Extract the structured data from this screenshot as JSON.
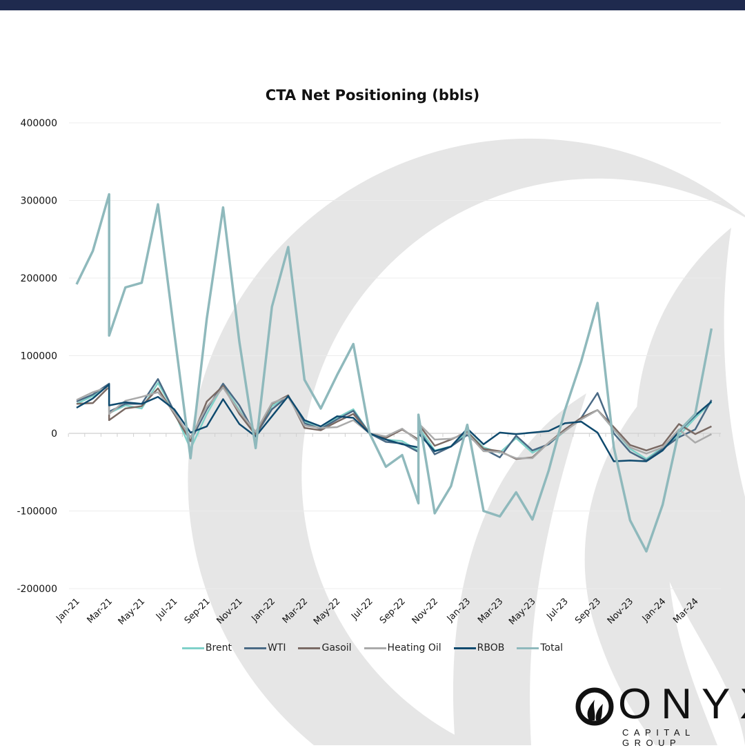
{
  "header_bar_color": "#1f2a4e",
  "chart_data": {
    "type": "line",
    "title": "CTA Net Positioning (bbls)",
    "xlabel": "",
    "ylabel": "",
    "ylim": [
      -200000,
      400000
    ],
    "yticks": [
      "400000",
      "300000",
      "200000",
      "100000",
      "0",
      "-100000",
      "-200000"
    ],
    "ytick_values": [
      400000,
      300000,
      200000,
      100000,
      0,
      -100000,
      -200000
    ],
    "xticks": [
      "Jan-21",
      "Mar-21",
      "May-21",
      "Jul-21",
      "Sep-21",
      "Nov-21",
      "Jan-22",
      "Mar-22",
      "May-22",
      "Jul-22",
      "Sep-22",
      "Nov-22",
      "Jan-23",
      "Mar-23",
      "May-23",
      "Jul-23",
      "Sep-23",
      "Nov-23",
      "Jan-24",
      "Mar-24"
    ],
    "grid": true,
    "legend_position": "bottom",
    "x": [
      "Jan-21",
      "Feb-21",
      "Mar-21",
      "Mar-21",
      "Apr-21",
      "May-21",
      "Jun-21",
      "Jul-21",
      "Aug-21",
      "Sep-21",
      "Oct-21",
      "Nov-21",
      "Dec-21",
      "Jan-22",
      "Feb-22",
      "Mar-22",
      "Apr-22",
      "May-22",
      "Jun-22",
      "Jul-22",
      "Aug-22",
      "Sep-22",
      "Oct-22",
      "Oct-22",
      "Nov-22",
      "Dec-22",
      "Jan-23",
      "Feb-23",
      "Mar-23",
      "Apr-23",
      "May-23",
      "Jun-23",
      "Jul-23",
      "Aug-23",
      "Sep-23",
      "Oct-23",
      "Nov-23",
      "Dec-23",
      "Jan-24",
      "Feb-24",
      "Mar-24",
      "Apr-24"
    ],
    "series": [
      {
        "name": "Brent",
        "color": "#7fd1c9",
        "values": [
          38000,
          48000,
          63000,
          26000,
          36000,
          32000,
          65000,
          28000,
          -20000,
          25000,
          62000,
          30000,
          -2000,
          35000,
          47000,
          15000,
          6000,
          20000,
          31000,
          0,
          -8000,
          -10000,
          -22000,
          8000,
          -22000,
          -17000,
          2000,
          -18000,
          -25000,
          -6000,
          -25000,
          -14000,
          3000,
          20000,
          30000,
          5000,
          -20000,
          -33000,
          -18000,
          -3000,
          20000,
          40000
        ]
      },
      {
        "name": "WTI",
        "color": "#4a6a85",
        "values": [
          41000,
          50000,
          64000,
          28000,
          38000,
          38000,
          70000,
          28000,
          -10000,
          31000,
          64000,
          36000,
          -2000,
          31000,
          48000,
          13000,
          6000,
          18000,
          29000,
          0,
          -11000,
          -13000,
          -24000,
          5000,
          -27000,
          -17000,
          -2000,
          -20000,
          -31000,
          -3000,
          -22000,
          -14000,
          5000,
          20000,
          52000,
          0,
          -24000,
          -35000,
          -20000,
          -5000,
          5000,
          43000
        ]
      },
      {
        "name": "Gasoil",
        "color": "#7a6a64",
        "values": [
          38000,
          39000,
          60000,
          17000,
          32000,
          35000,
          58000,
          25000,
          -10000,
          41000,
          61000,
          25000,
          -2000,
          38000,
          49000,
          7000,
          4000,
          15000,
          25000,
          0,
          -6000,
          5000,
          -8000,
          12000,
          -16000,
          -8000,
          2000,
          -20000,
          -23000,
          -33000,
          -31000,
          -12000,
          5000,
          20000,
          30000,
          8000,
          -15000,
          -22000,
          -15000,
          12000,
          -1000,
          9000
        ]
      },
      {
        "name": "Heating Oil",
        "color": "#aaaaaa",
        "values": [
          43000,
          53000,
          60000,
          25000,
          42000,
          47000,
          53000,
          27000,
          -5000,
          34000,
          59000,
          28000,
          2000,
          39000,
          47000,
          10000,
          7000,
          8000,
          17000,
          0,
          -4000,
          6000,
          -10000,
          13000,
          -8000,
          -7000,
          0,
          -23000,
          -24000,
          -32000,
          -32000,
          -12000,
          3000,
          18000,
          30000,
          5000,
          -18000,
          -26000,
          -18000,
          5000,
          -12000,
          -1000
        ]
      },
      {
        "name": "RBOB",
        "color": "#0f4a6e",
        "values": [
          33000,
          45000,
          63000,
          36000,
          40000,
          38000,
          47000,
          31000,
          1000,
          9000,
          44000,
          12000,
          -4000,
          22000,
          48000,
          17000,
          9000,
          22000,
          20000,
          0,
          -8000,
          -14000,
          -18000,
          0,
          -23000,
          -17000,
          6000,
          -14000,
          1000,
          -1000,
          1000,
          3000,
          13000,
          15000,
          1000,
          -36000,
          -35000,
          -36000,
          -22000,
          2000,
          23000,
          41000
        ]
      },
      {
        "name": "Total",
        "color": "#8fb9bc",
        "values": [
          192000,
          235000,
          308000,
          126000,
          188000,
          194000,
          295000,
          130000,
          -32000,
          148000,
          291000,
          118000,
          -19000,
          163000,
          240000,
          69000,
          32000,
          75000,
          115000,
          0,
          -43000,
          -28000,
          -90000,
          24000,
          -103000,
          -68000,
          11000,
          -100000,
          -107000,
          -76000,
          -111000,
          -48000,
          30000,
          93000,
          168000,
          -18000,
          -112000,
          -152000,
          -92000,
          3000,
          25000,
          135000
        ]
      }
    ]
  },
  "logo": {
    "name": "ONYX",
    "subtitle": "CAPITAL GROUP"
  }
}
